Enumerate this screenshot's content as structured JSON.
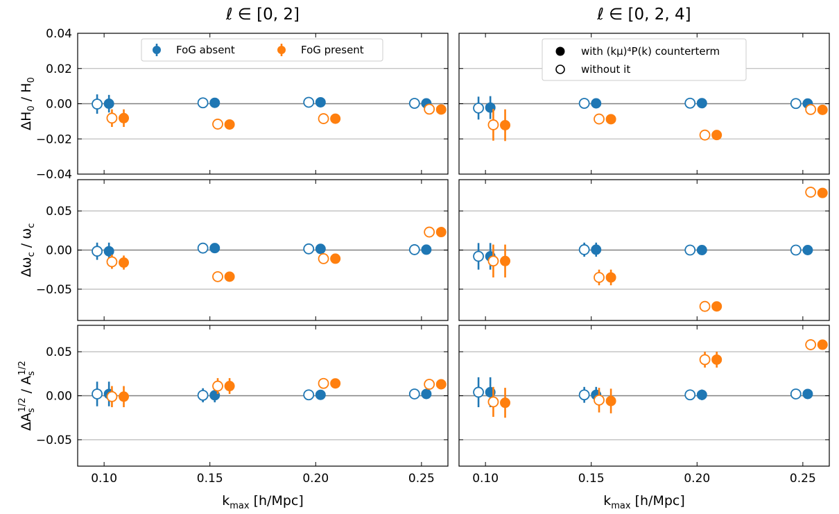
{
  "figure": {
    "columns": [
      {
        "title": "ℓ ∈ [0, 2]"
      },
      {
        "title": "ℓ ∈ [0, 2, 4]"
      }
    ],
    "xlabel": "k_max [h/Mpc]",
    "xlabel_main": "k",
    "xlabel_sub": "max",
    "xlabel_rest": " [h/Mpc]",
    "xticks": [
      "0.10",
      "0.15",
      "0.20",
      "0.25"
    ],
    "xlim": [
      0.0875,
      0.2625
    ],
    "rows": [
      {
        "ylabel": "ΔH0/H0",
        "ylabel_parts": [
          "ΔH",
          "0",
          " / H",
          "0"
        ],
        "ylim": [
          -0.04,
          0.04
        ],
        "yticks": [
          -0.04,
          -0.02,
          0.0,
          0.02,
          0.04
        ],
        "ytick_labels": [
          "−0.04",
          "−0.02",
          "0.00",
          "0.02",
          "0.04"
        ]
      },
      {
        "ylabel": "Δωc/ωc",
        "ylabel_parts": [
          "Δω",
          "c",
          " / ω",
          "c"
        ],
        "ylim": [
          -0.09,
          0.09
        ],
        "yticks": [
          -0.05,
          0.0,
          0.05
        ],
        "ytick_labels": [
          "−0.05",
          "0.00",
          "0.05"
        ]
      },
      {
        "ylabel": "ΔAs^1/2/As^1/2",
        "ylabel_parts": [
          "ΔA",
          "s",
          "1/2",
          " / A",
          "s",
          "1/2"
        ],
        "ylim": [
          -0.08,
          0.08
        ],
        "yticks": [
          -0.05,
          0.0,
          0.05
        ],
        "ytick_labels": [
          "−0.05",
          "0.00",
          "0.05"
        ]
      }
    ]
  },
  "legends": {
    "fog": {
      "absent_label": "FoG absent",
      "present_label": "FoG present"
    },
    "counterterm": {
      "with_label": "with (kμ)⁴P(k) counterterm",
      "without_label": "without it"
    }
  },
  "colors": {
    "fog_absent": "#1f77b4",
    "fog_present": "#ff7f0e",
    "gridline": "#b0b0b0",
    "zero_line": "#808080"
  },
  "chart_data": [
    {
      "type": "scatter",
      "panel": "ℓ ∈ [0, 2] / ΔH0/H0",
      "series": [
        {
          "name": "FoG absent, with counterterm",
          "x": [
            0.1,
            0.15,
            0.2,
            0.25
          ],
          "y": [
            0.0,
            0.0005,
            0.0008,
            0.0002
          ],
          "yerr": [
            0.005,
            0.001,
            0.0008,
            0.0008
          ]
        },
        {
          "name": "FoG absent, without it",
          "x": [
            0.1,
            0.15,
            0.2,
            0.25
          ],
          "y": [
            -0.0002,
            0.0005,
            0.0008,
            0.0002
          ],
          "yerr": [
            0.0055,
            0.001,
            0.0008,
            0.0008
          ]
        },
        {
          "name": "FoG present, with counterterm",
          "x": [
            0.1,
            0.15,
            0.2,
            0.25
          ],
          "y": [
            -0.0082,
            -0.0118,
            -0.0085,
            -0.0033
          ],
          "yerr": [
            0.005,
            0.0005,
            0.0005,
            0.0005
          ]
        },
        {
          "name": "FoG present, without it",
          "x": [
            0.1,
            0.15,
            0.2,
            0.25
          ],
          "y": [
            -0.0082,
            -0.0116,
            -0.0085,
            -0.0031
          ],
          "yerr": [
            0.005,
            0.0005,
            0.0005,
            0.0005
          ]
        }
      ]
    },
    {
      "type": "scatter",
      "panel": "ℓ ∈ [0, 2, 4] / ΔH0/H0",
      "series": [
        {
          "name": "FoG absent, with counterterm",
          "x": [
            0.1,
            0.15,
            0.2,
            0.25
          ],
          "y": [
            -0.0022,
            0.0002,
            0.0003,
            0.0001
          ],
          "yerr": [
            0.0065,
            0.001,
            0.0008,
            0.0008
          ]
        },
        {
          "name": "FoG absent, without it",
          "x": [
            0.1,
            0.15,
            0.2,
            0.25
          ],
          "y": [
            -0.0025,
            0.0002,
            0.0003,
            0.0001
          ],
          "yerr": [
            0.0065,
            0.001,
            0.0008,
            0.0008
          ]
        },
        {
          "name": "FoG present, with counterterm",
          "x": [
            0.1,
            0.15,
            0.2,
            0.25
          ],
          "y": [
            -0.0122,
            -0.0088,
            -0.0178,
            -0.0035
          ],
          "yerr": [
            0.009,
            0.0008,
            0.0008,
            0.0005
          ]
        },
        {
          "name": "FoG present, without it",
          "x": [
            0.1,
            0.15,
            0.2,
            0.25
          ],
          "y": [
            -0.012,
            -0.0087,
            -0.0178,
            -0.0033
          ],
          "yerr": [
            0.009,
            0.0008,
            0.0008,
            0.0005
          ]
        }
      ]
    },
    {
      "type": "scatter",
      "panel": "ℓ ∈ [0, 2] / Δωc/ωc",
      "series": [
        {
          "name": "FoG absent, with counterterm",
          "x": [
            0.1,
            0.15,
            0.2,
            0.25
          ],
          "y": [
            -0.0015,
            0.0025,
            0.0015,
            0.0005
          ],
          "yerr": [
            0.011,
            0.005,
            0.002,
            0.002
          ]
        },
        {
          "name": "FoG absent, without it",
          "x": [
            0.1,
            0.15,
            0.2,
            0.25
          ],
          "y": [
            -0.0015,
            0.0025,
            0.0015,
            0.0005
          ],
          "yerr": [
            0.011,
            0.005,
            0.002,
            0.002
          ]
        },
        {
          "name": "FoG present, with counterterm",
          "x": [
            0.1,
            0.15,
            0.2,
            0.25
          ],
          "y": [
            -0.016,
            -0.034,
            -0.011,
            0.023
          ],
          "yerr": [
            0.009,
            0.002,
            0.002,
            0.002
          ]
        },
        {
          "name": "FoG present, without it",
          "x": [
            0.1,
            0.15,
            0.2,
            0.25
          ],
          "y": [
            -0.015,
            -0.034,
            -0.011,
            0.023
          ],
          "yerr": [
            0.009,
            0.002,
            0.002,
            0.002
          ]
        }
      ]
    },
    {
      "type": "scatter",
      "panel": "ℓ ∈ [0, 2, 4] / Δωc/ωc",
      "series": [
        {
          "name": "FoG absent, with counterterm",
          "x": [
            0.1,
            0.15,
            0.2,
            0.25
          ],
          "y": [
            -0.008,
            0.0005,
            0.0,
            0.0
          ],
          "yerr": [
            0.017,
            0.009,
            0.006,
            0.002
          ]
        },
        {
          "name": "FoG absent, without it",
          "x": [
            0.1,
            0.15,
            0.2,
            0.25
          ],
          "y": [
            -0.008,
            0.0005,
            0.0,
            0.0
          ],
          "yerr": [
            0.017,
            0.009,
            0.006,
            0.002
          ]
        },
        {
          "name": "FoG present, with counterterm",
          "x": [
            0.1,
            0.15,
            0.2,
            0.25
          ],
          "y": [
            -0.014,
            -0.035,
            -0.072,
            0.073
          ],
          "yerr": [
            0.021,
            0.01,
            0.002,
            0.002
          ]
        },
        {
          "name": "FoG present, without it",
          "x": [
            0.1,
            0.15,
            0.2,
            0.25
          ],
          "y": [
            -0.014,
            -0.035,
            -0.072,
            0.074
          ],
          "yerr": [
            0.021,
            0.01,
            0.002,
            0.002
          ]
        }
      ]
    },
    {
      "type": "scatter",
      "panel": "ℓ ∈ [0, 2] / ΔAs^1/2/As^1/2",
      "series": [
        {
          "name": "FoG absent, with counterterm",
          "x": [
            0.1,
            0.15,
            0.2,
            0.25
          ],
          "y": [
            0.002,
            0.0005,
            0.001,
            0.002
          ],
          "yerr": [
            0.014,
            0.008,
            0.002,
            0.002
          ]
        },
        {
          "name": "FoG absent, without it",
          "x": [
            0.1,
            0.15,
            0.2,
            0.25
          ],
          "y": [
            0.002,
            0.0005,
            0.001,
            0.002
          ],
          "yerr": [
            0.014,
            0.008,
            0.002,
            0.002
          ]
        },
        {
          "name": "FoG present, with counterterm",
          "x": [
            0.1,
            0.15,
            0.2,
            0.25
          ],
          "y": [
            -0.001,
            0.011,
            0.014,
            0.013
          ],
          "yerr": [
            0.012,
            0.009,
            0.002,
            0.002
          ]
        },
        {
          "name": "FoG present, without it",
          "x": [
            0.1,
            0.15,
            0.2,
            0.25
          ],
          "y": [
            -0.001,
            0.011,
            0.014,
            0.013
          ],
          "yerr": [
            0.012,
            0.009,
            0.002,
            0.002
          ]
        }
      ]
    },
    {
      "type": "scatter",
      "panel": "ℓ ∈ [0, 2, 4] / ΔAs^1/2/As^1/2",
      "series": [
        {
          "name": "FoG absent, with counterterm",
          "x": [
            0.1,
            0.15,
            0.2,
            0.25
          ],
          "y": [
            0.004,
            0.001,
            0.001,
            0.002
          ],
          "yerr": [
            0.017,
            0.009,
            0.006,
            0.002
          ]
        },
        {
          "name": "FoG absent, without it",
          "x": [
            0.1,
            0.15,
            0.2,
            0.25
          ],
          "y": [
            0.004,
            0.001,
            0.001,
            0.002
          ],
          "yerr": [
            0.017,
            0.009,
            0.006,
            0.002
          ]
        },
        {
          "name": "FoG present, with counterterm",
          "x": [
            0.1,
            0.15,
            0.2,
            0.25
          ],
          "y": [
            -0.008,
            -0.006,
            0.041,
            0.058
          ],
          "yerr": [
            0.017,
            0.014,
            0.009,
            0.002
          ]
        },
        {
          "name": "FoG present, without it",
          "x": [
            0.1,
            0.15,
            0.2,
            0.25
          ],
          "y": [
            -0.007,
            -0.005,
            0.041,
            0.058
          ],
          "yerr": [
            0.017,
            0.014,
            0.009,
            0.002
          ]
        }
      ]
    }
  ]
}
